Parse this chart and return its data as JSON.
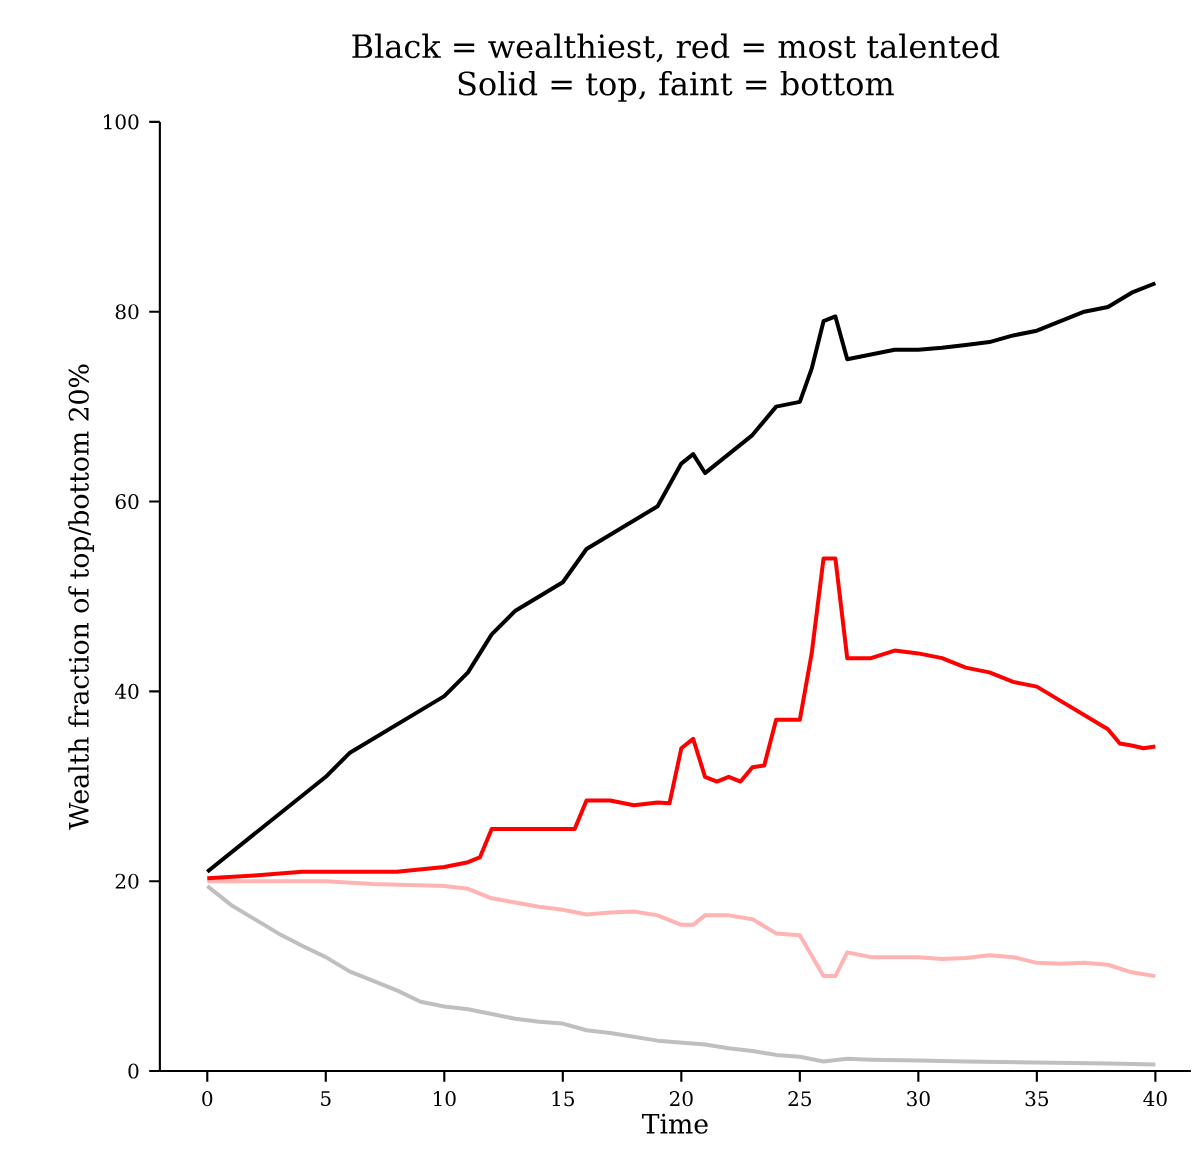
{
  "chart_data": {
    "type": "line",
    "title": "Black = wealthiest, red = most talented",
    "subtitle": "Solid = top, faint = bottom",
    "xlabel": "Time",
    "ylabel": "Wealth fraction of top/bottom 20%",
    "xlim": [
      -2,
      41.5
    ],
    "ylim": [
      0,
      100
    ],
    "xticks": [
      0,
      5,
      10,
      15,
      20,
      25,
      30,
      35,
      40
    ],
    "yticks": [
      0,
      20,
      40,
      60,
      80,
      100
    ],
    "grid": false,
    "marker": "none",
    "line_style": "solid",
    "series": [
      {
        "color": "#bfbfbf",
        "x": [
          0,
          1,
          2,
          3,
          4,
          5,
          6,
          7,
          8,
          9,
          10,
          11,
          12,
          13,
          14,
          15,
          16,
          17,
          18,
          19,
          20,
          21,
          22,
          23,
          24,
          25,
          26,
          27,
          28,
          30,
          32,
          35,
          38,
          40
        ],
        "values": [
          19.5,
          17.5,
          16,
          14.5,
          13.2,
          12,
          10.5,
          9.5,
          8.5,
          7.3,
          6.8,
          6.5,
          6,
          5.5,
          5.2,
          5,
          4.3,
          4,
          3.6,
          3.2,
          3,
          2.8,
          2.4,
          2.1,
          1.7,
          1.5,
          1,
          1.3,
          1.2,
          1.1,
          1,
          0.9,
          0.8,
          0.7
        ]
      },
      {
        "color": "#ffb3b3",
        "x": [
          0,
          5,
          7,
          10,
          11,
          12,
          14,
          15,
          16,
          17,
          18,
          19,
          20,
          20.5,
          21,
          22,
          23,
          24,
          25,
          26,
          26.5,
          27,
          28,
          29,
          30,
          31,
          32,
          33,
          34,
          35,
          36,
          37,
          38,
          39,
          40
        ],
        "values": [
          20,
          20,
          19.7,
          19.5,
          19.2,
          18.2,
          17.3,
          17,
          16.5,
          16.7,
          16.8,
          16.4,
          15.4,
          15.4,
          16.4,
          16.4,
          16,
          14.5,
          14.3,
          10,
          10,
          12.5,
          12,
          12,
          12,
          11.8,
          11.9,
          12.2,
          12,
          11.4,
          11.3,
          11.4,
          11.2,
          10.4,
          10
        ]
      },
      {
        "color": "#000000",
        "x": [
          0,
          1,
          2,
          3,
          4,
          5,
          6,
          7,
          8,
          9,
          10,
          11,
          12,
          13,
          14,
          15,
          16,
          17,
          18,
          19,
          20,
          20.5,
          21,
          22,
          23,
          24,
          25,
          25.5,
          26,
          26.5,
          27,
          28,
          29,
          30,
          31,
          32,
          33,
          34,
          35,
          36,
          37,
          38,
          39,
          40
        ],
        "values": [
          21,
          23,
          25,
          27,
          29,
          31,
          33.5,
          35,
          36.5,
          38,
          39.5,
          42,
          46,
          48.5,
          50,
          51.5,
          55,
          56.5,
          58,
          59.5,
          64,
          65,
          63,
          65,
          67,
          70,
          70.5,
          74,
          79,
          79.5,
          75,
          75.5,
          76,
          76,
          76.2,
          76.5,
          76.8,
          77.5,
          78,
          79,
          80,
          80.5,
          82,
          83
        ]
      },
      {
        "color": "#ff0000",
        "x": [
          0,
          2,
          4,
          6,
          8,
          10,
          11,
          11.5,
          12,
          13,
          14,
          15,
          15.5,
          16,
          17,
          18,
          19,
          19.5,
          20,
          20.5,
          21,
          21.5,
          22,
          22.5,
          23,
          23.5,
          24,
          25,
          25.5,
          26,
          26.5,
          27,
          28,
          29,
          30,
          31,
          32,
          33,
          34,
          35,
          36,
          37,
          38,
          38.5,
          39,
          39.5,
          40
        ],
        "values": [
          20.3,
          20.6,
          21,
          21,
          21,
          21.5,
          22,
          22.5,
          25.5,
          25.5,
          25.5,
          25.5,
          25.5,
          28.5,
          28.5,
          28,
          28.3,
          28.2,
          34,
          35,
          31,
          30.5,
          31,
          30.5,
          32,
          32.2,
          37,
          37,
          44,
          54,
          54,
          43.5,
          43.5,
          44.3,
          44,
          43.5,
          42.5,
          42,
          41,
          40.5,
          39,
          37.5,
          36,
          34.5,
          34.3,
          34,
          34.2
        ]
      }
    ]
  }
}
